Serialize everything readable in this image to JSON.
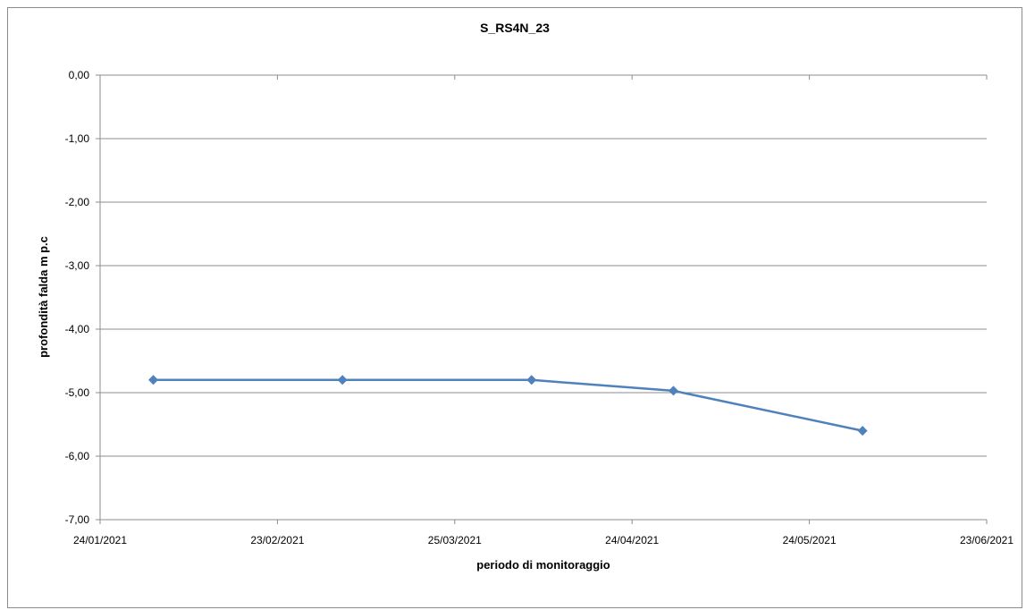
{
  "chart_data": {
    "type": "line",
    "title": "S_RS4N_23",
    "xlabel": "periodo di monitoraggio",
    "ylabel": "profondità falda m p.c",
    "xlim": [
      "24/01/2021",
      "23/06/2021"
    ],
    "ylim": [
      -7,
      0
    ],
    "x_ticks": [
      "24/01/2021",
      "23/02/2021",
      "25/03/2021",
      "24/04/2021",
      "24/05/2021",
      "23/06/2021"
    ],
    "y_ticks": [
      "0,00",
      "-1,00",
      "-2,00",
      "-3,00",
      "-4,00",
      "-5,00",
      "-6,00",
      "-7,00"
    ],
    "y_tick_values": [
      0,
      -1,
      -2,
      -3,
      -4,
      -5,
      -6,
      -7
    ],
    "grid": "horizontal",
    "legend": "none",
    "series": [
      {
        "color": "#4f81bd",
        "marker": "diamond",
        "x": [
          "2021-02-02",
          "2021-03-06",
          "2021-04-07",
          "2021-05-01",
          "2021-06-02"
        ],
        "y": [
          -4.8,
          -4.8,
          -4.8,
          -4.97,
          -5.6
        ]
      }
    ]
  }
}
